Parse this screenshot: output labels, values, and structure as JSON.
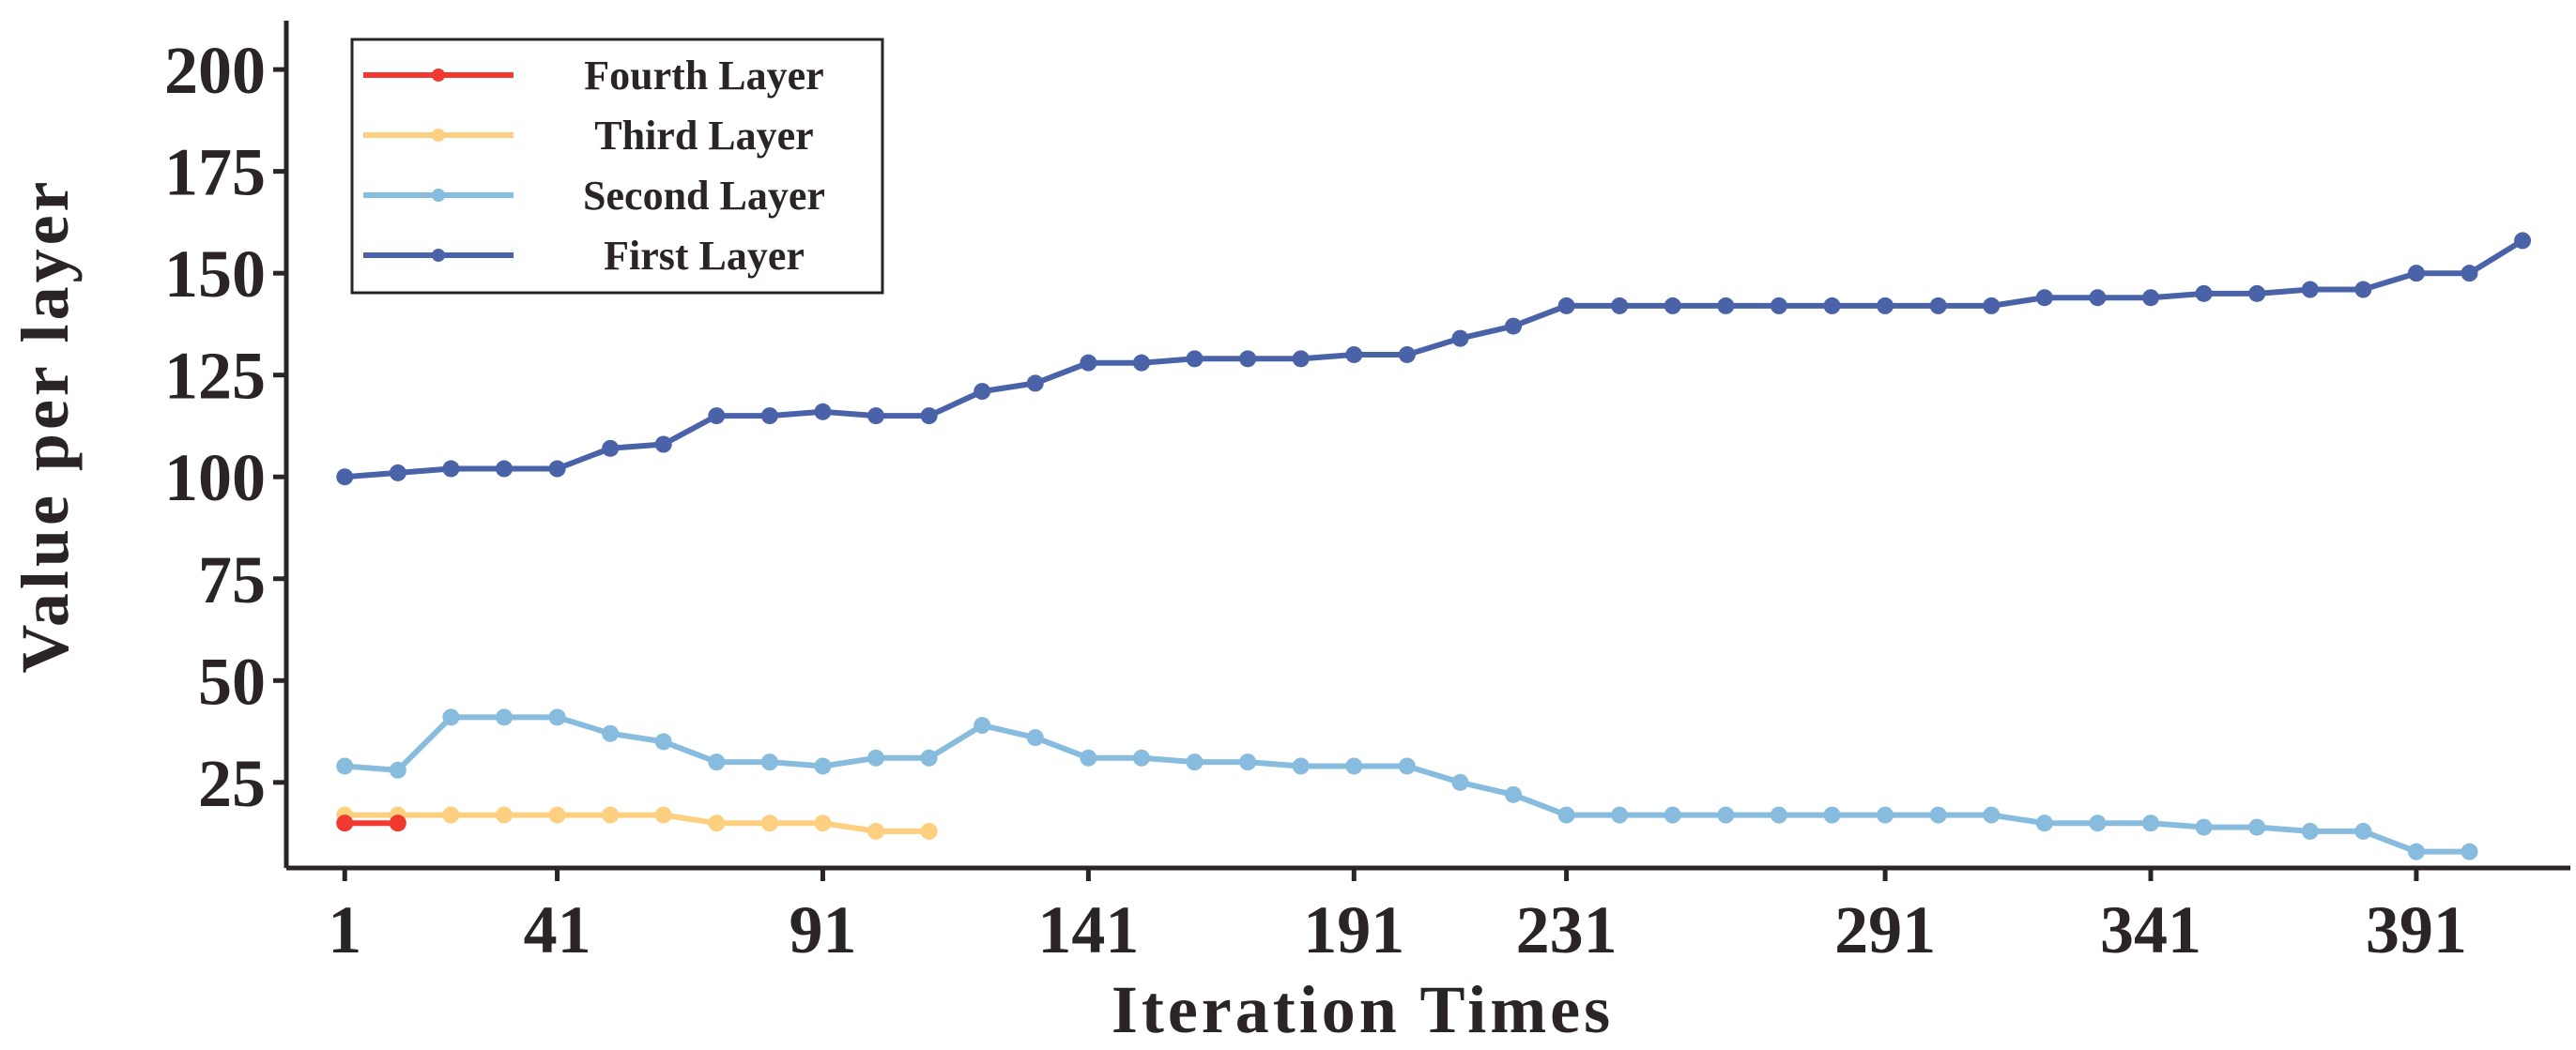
{
  "chart_data": {
    "type": "line",
    "title": "",
    "xlabel": "Iteration Times",
    "ylabel": "Value per layer",
    "xlim": [
      -10,
      420
    ],
    "ylim": [
      4,
      212
    ],
    "x_ticks": [
      1,
      41,
      91,
      141,
      191,
      231,
      291,
      341,
      391
    ],
    "y_ticks": [
      25,
      50,
      75,
      100,
      125,
      150,
      175,
      200
    ],
    "grid": false,
    "legend_position": "top-left",
    "legend_order": [
      "Fourth Layer",
      "Third Layer",
      "Second Layer",
      "First Layer"
    ],
    "series": [
      {
        "name": "First Layer",
        "color": "#4a62a8",
        "x": [
          1,
          11,
          21,
          31,
          41,
          51,
          61,
          71,
          81,
          91,
          101,
          111,
          121,
          131,
          141,
          151,
          161,
          171,
          181,
          191,
          201,
          211,
          221,
          231,
          241,
          251,
          261,
          271,
          281,
          291,
          301,
          311,
          321,
          331,
          341,
          351,
          361,
          371,
          381,
          391,
          401,
          411
        ],
        "values": [
          100,
          101,
          102,
          102,
          102,
          107,
          108,
          115,
          115,
          116,
          115,
          115,
          121,
          123,
          128,
          128,
          129,
          129,
          129,
          130,
          130,
          134,
          137,
          142,
          142,
          142,
          142,
          142,
          142,
          142,
          142,
          142,
          144,
          144,
          144,
          145,
          145,
          146,
          146,
          150,
          150,
          158
        ]
      },
      {
        "name": "Second Layer",
        "color": "#88bcde",
        "x": [
          1,
          11,
          21,
          31,
          41,
          51,
          61,
          71,
          81,
          91,
          101,
          111,
          121,
          131,
          141,
          151,
          161,
          171,
          181,
          191,
          201,
          211,
          221,
          231,
          241,
          251,
          261,
          271,
          281,
          291,
          301,
          311,
          321,
          331,
          341,
          351,
          361,
          371,
          381,
          391,
          401
        ],
        "values": [
          29,
          28,
          41,
          41,
          41,
          37,
          35,
          30,
          30,
          29,
          31,
          31,
          39,
          36,
          31,
          31,
          30,
          30,
          29,
          29,
          29,
          25,
          22,
          17,
          17,
          17,
          17,
          17,
          17,
          17,
          17,
          17,
          15,
          15,
          15,
          14,
          14,
          13,
          13,
          8,
          8
        ]
      },
      {
        "name": "Third Layer",
        "color": "#fcd080",
        "x": [
          1,
          11,
          21,
          31,
          41,
          51,
          61,
          71,
          81,
          91,
          101,
          111
        ],
        "values": [
          17,
          17,
          17,
          17,
          17,
          17,
          17,
          15,
          15,
          15,
          13,
          13
        ]
      },
      {
        "name": "Fourth Layer",
        "color": "#f03a30",
        "x": [
          1,
          11
        ],
        "values": [
          15,
          15
        ]
      }
    ]
  }
}
